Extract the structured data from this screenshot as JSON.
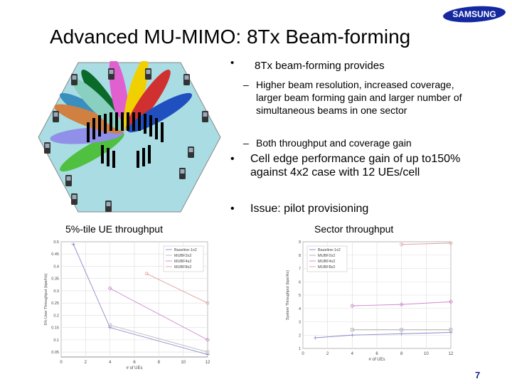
{
  "brand": {
    "logo_text": "SAMSUNG",
    "color": "#1428a0"
  },
  "slide": {
    "title": "Advanced MU-MIMO: 8Tx Beam-forming",
    "page_number": "7"
  },
  "bullets": {
    "main1": "8Tx beam-forming provides",
    "sub1": "Higher beam resolution, increased coverage, larger beam forming gain and larger number of simultaneous beams in one sector",
    "sub2": "Both throughput and coverage gain",
    "main2": "Cell edge performance gain of up to150% against 4x2 case with 12 UEs/cell",
    "main3": "Issue: pilot provisioning"
  },
  "illustration": {
    "icon": "beamforming-hexagon-cell",
    "beam_colors": [
      "#3a8fbf",
      "#0a6a2a",
      "#e060d0",
      "#f0d000",
      "#d03030",
      "#2050c0",
      "#50c040",
      "#9090e8",
      "#d08040",
      "#8ad0c0"
    ]
  },
  "captions": {
    "left": "5%-tile UE throughput",
    "right": "Sector throughput"
  },
  "chart_data": [
    {
      "type": "line",
      "title": "5%-tile UE throughput",
      "xlabel": "# of UEs",
      "ylabel": "5% User Throughput (bps/Hz)",
      "xlim": [
        0,
        12
      ],
      "ylim": [
        0.03,
        0.5
      ],
      "xticks": [
        "0",
        "2",
        "4",
        "6",
        "8",
        "10",
        "12"
      ],
      "yticks": [
        "0.5",
        "0.45",
        "0.4",
        "0.35",
        "0.3",
        "0.25",
        "0.2",
        "0.15",
        "0.1",
        "0.05"
      ],
      "legend_position": "top-right",
      "series": [
        {
          "name": "Baseline-1x2",
          "color": "#8888cc",
          "x": [
            1,
            4,
            12
          ],
          "y": [
            0.49,
            0.15,
            0.04
          ]
        },
        {
          "name": "MUBF2x2",
          "color": "#bbbbbb",
          "x": [
            4,
            12
          ],
          "y": [
            0.16,
            0.05
          ]
        },
        {
          "name": "MUBF4x2",
          "color": "#cc88cc",
          "x": [
            4,
            12
          ],
          "y": [
            0.31,
            0.1
          ]
        },
        {
          "name": "MUBF8x2",
          "color": "#e0a0a0",
          "x": [
            7,
            12
          ],
          "y": [
            0.37,
            0.25
          ]
        }
      ]
    },
    {
      "type": "line",
      "title": "Sector throughput",
      "xlabel": "# of UEs",
      "ylabel": "System Throughput (bps/Hz)",
      "xlim": [
        0,
        12
      ],
      "ylim": [
        1,
        9
      ],
      "xticks": [
        "0",
        "2",
        "4",
        "6",
        "8",
        "10",
        "12"
      ],
      "yticks": [
        "9",
        "8",
        "7",
        "6",
        "5",
        "4",
        "3",
        "2",
        "1"
      ],
      "legend_position": "top-left",
      "series": [
        {
          "name": "Baseline-1x2",
          "color": "#8888cc",
          "x": [
            1,
            4,
            8,
            12
          ],
          "y": [
            1.8,
            2.0,
            2.1,
            2.2
          ]
        },
        {
          "name": "MUBF2x2",
          "color": "#aaaaaa",
          "x": [
            4,
            8,
            12
          ],
          "y": [
            2.4,
            2.4,
            2.4
          ]
        },
        {
          "name": "MUBF4x2",
          "color": "#cc88cc",
          "x": [
            4,
            8,
            12
          ],
          "y": [
            4.2,
            4.3,
            4.5
          ]
        },
        {
          "name": "MUBF8x2",
          "color": "#e0a0a0",
          "x": [
            8,
            12
          ],
          "y": [
            8.8,
            8.9
          ]
        }
      ]
    }
  ]
}
